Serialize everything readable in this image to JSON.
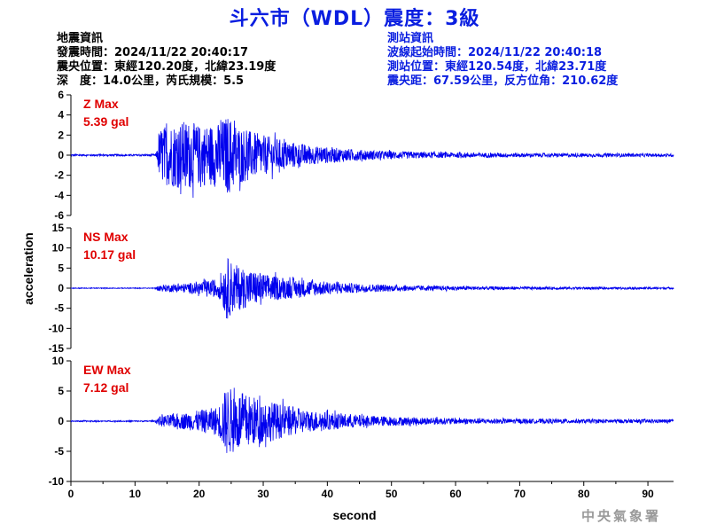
{
  "title": "斗六市（WDL）震度：3級",
  "event_info": {
    "heading": "地震資訊",
    "time": "發震時間：2024/11/22 20:40:17",
    "epicenter": "震央位置：東經120.20度，北緯23.19度",
    "depth_magnitude": "深　度：14.0公里，芮氏規模：5.5"
  },
  "station_info": {
    "heading": "測站資訊",
    "wave_start": "波線起始時間：2024/11/22 20:40:18",
    "location": "測站位置：東經120.54度，北緯23.71度",
    "distance": "震央距：67.59公里，反方位角：210.62度"
  },
  "credit": "中央氣象署",
  "colors": {
    "title": "#0a1ee0",
    "trace": "#0000ee",
    "max_label": "#e00000",
    "station_info": "#0a1ee0"
  },
  "chart_data": {
    "type": "line",
    "xlabel": "second",
    "ylabel": "acceleration",
    "xlim": [
      0,
      94
    ],
    "xticks": [
      0,
      10,
      20,
      30,
      40,
      50,
      60,
      70,
      80,
      90
    ],
    "panels": [
      {
        "name": "Z",
        "max_label": "Z Max",
        "max_value": "5.39 gal",
        "ylim": [
          -6,
          6
        ],
        "yticks": [
          6,
          4,
          2,
          0,
          -2,
          -4,
          -6
        ],
        "envelope": [
          [
            0,
            0.1
          ],
          [
            13.3,
            0.1
          ],
          [
            13.6,
            1.5
          ],
          [
            14,
            2.8
          ],
          [
            16,
            3.2
          ],
          [
            18,
            3.5
          ],
          [
            20,
            3.0
          ],
          [
            23,
            3.2
          ],
          [
            24.5,
            4.0
          ],
          [
            26,
            3.0
          ],
          [
            28,
            2.4
          ],
          [
            30,
            2.0
          ],
          [
            34,
            1.4
          ],
          [
            38,
            0.9
          ],
          [
            42,
            0.7
          ],
          [
            46,
            0.5
          ],
          [
            50,
            0.4
          ],
          [
            56,
            0.3
          ],
          [
            62,
            0.25
          ],
          [
            70,
            0.2
          ],
          [
            80,
            0.18
          ],
          [
            94,
            0.15
          ]
        ]
      },
      {
        "name": "NS",
        "max_label": "NS Max",
        "max_value": "10.17 gal",
        "ylim": [
          -15,
          15
        ],
        "yticks": [
          15,
          10,
          5,
          0,
          -5,
          -10,
          -15
        ],
        "envelope": [
          [
            0,
            0.1
          ],
          [
            13,
            0.1
          ],
          [
            14,
            0.8
          ],
          [
            18,
            1.2
          ],
          [
            22,
            2.0
          ],
          [
            23.5,
            3.0
          ],
          [
            24.2,
            8.0
          ],
          [
            25.5,
            6.0
          ],
          [
            27,
            5.0
          ],
          [
            29,
            4.2
          ],
          [
            31,
            3.2
          ],
          [
            35,
            2.4
          ],
          [
            40,
            1.6
          ],
          [
            45,
            1.1
          ],
          [
            50,
            0.8
          ],
          [
            56,
            0.6
          ],
          [
            64,
            0.45
          ],
          [
            72,
            0.35
          ],
          [
            82,
            0.3
          ],
          [
            94,
            0.25
          ]
        ]
      },
      {
        "name": "EW",
        "max_label": "EW Max",
        "max_value": "7.12 gal",
        "ylim": [
          -10,
          10
        ],
        "yticks": [
          10,
          5,
          0,
          -5,
          -10
        ],
        "envelope": [
          [
            0,
            0.1
          ],
          [
            13,
            0.1
          ],
          [
            14,
            0.9
          ],
          [
            18,
            1.4
          ],
          [
            21,
            2.0
          ],
          [
            23,
            2.4
          ],
          [
            24.3,
            5.8
          ],
          [
            26,
            5.0
          ],
          [
            28,
            4.3
          ],
          [
            30,
            3.6
          ],
          [
            33,
            2.8
          ],
          [
            37,
            1.8
          ],
          [
            42,
            1.3
          ],
          [
            47,
            0.9
          ],
          [
            52,
            0.7
          ],
          [
            60,
            0.5
          ],
          [
            70,
            0.4
          ],
          [
            80,
            0.35
          ],
          [
            94,
            0.3
          ]
        ]
      }
    ]
  }
}
